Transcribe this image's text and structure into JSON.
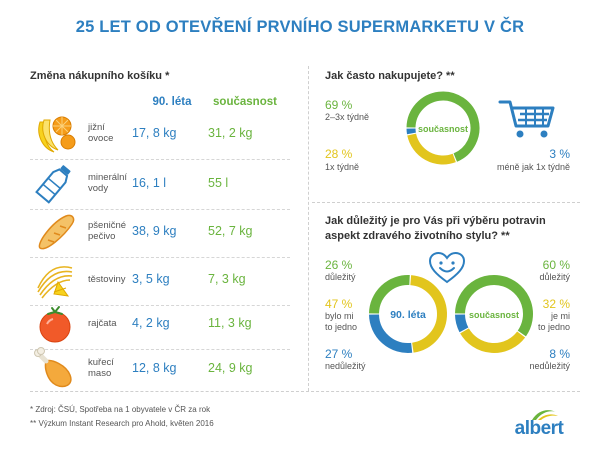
{
  "title": "25 LET OD OTEVŘENÍ PRVNÍHO SUPERMARKETU V ČR",
  "basket": {
    "heading": "Změna nákupního košíku *",
    "col_90": "90. léta",
    "col_now": "současnost",
    "rows": [
      {
        "label": "jižní\novoce",
        "v90": "17, 8 kg",
        "now": "31, 2 kg",
        "icon": "fruit-icon"
      },
      {
        "label": "minerální\nvody",
        "v90": "16, 1 l",
        "now": "55 l",
        "icon": "water-bottle-icon"
      },
      {
        "label": "pšeničné\npečivo",
        "v90": "38, 9 kg",
        "now": "52, 7 kg",
        "icon": "bread-icon"
      },
      {
        "label": "těstoviny",
        "v90": "3, 5 kg",
        "now": "7, 3 kg",
        "icon": "pasta-icon"
      },
      {
        "label": "rajčata",
        "v90": "4, 2 kg",
        "now": "11, 3 kg",
        "icon": "tomato-icon"
      },
      {
        "label": "kuřecí\nmaso",
        "v90": "12, 8 kg",
        "now": "24, 9 kg",
        "icon": "chicken-leg-icon"
      }
    ]
  },
  "frequency": {
    "heading": "Jak často nakupujete? **",
    "center": "současnost",
    "items": [
      {
        "pct": "69 %",
        "label": "2–3x týdně",
        "value": 69,
        "color": "#6ab43e"
      },
      {
        "pct": "28 %",
        "label": "1x týdně",
        "value": 28,
        "color": "#e2c51d"
      },
      {
        "pct": "3 %",
        "label": "méně jak 1x týdně",
        "value": 3,
        "color": "#2d7fc0"
      }
    ],
    "icon": "shopping-cart-icon"
  },
  "health": {
    "heading": "Jak důležitý je pro Vás při výběru potravin aspekt zdravého životního stylu? **",
    "icon": "heart-smile-icon",
    "past": {
      "center": "90. léta",
      "items": [
        {
          "pct": "26 %",
          "label": "důležitý",
          "value": 26,
          "color": "#6ab43e"
        },
        {
          "pct": "47 %",
          "label": "bylo mi\nto jedno",
          "value": 47,
          "color": "#e2c51d"
        },
        {
          "pct": "27 %",
          "label": "nedůležitý",
          "value": 27,
          "color": "#2d7fc0"
        }
      ]
    },
    "now": {
      "center": "současnost",
      "items": [
        {
          "pct": "60 %",
          "label": "důležitý",
          "value": 60,
          "color": "#6ab43e"
        },
        {
          "pct": "32 %",
          "label": "je mi\nto jedno",
          "value": 32,
          "color": "#e2c51d"
        },
        {
          "pct": "8 %",
          "label": "nedůležitý",
          "value": 8,
          "color": "#2d7fc0"
        }
      ]
    }
  },
  "footnotes": {
    "f1": "* Zdroj: ČSÚ, Spotřeba na 1 obyvatele v ČR za rok",
    "f2": "** Výzkum Instant Research pro Ahold, květen 2016"
  },
  "brand": "albert"
}
